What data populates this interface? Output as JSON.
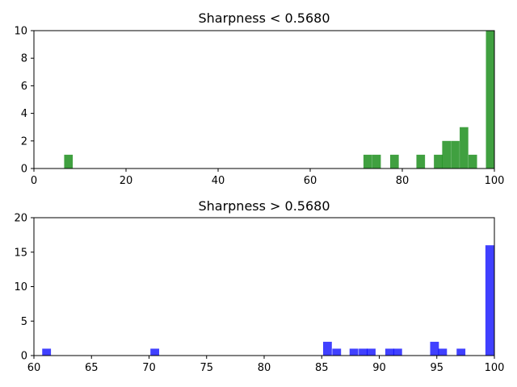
{
  "chart_data": [
    {
      "type": "bar",
      "title": "Sharpness < 0.5680",
      "color": "#008000",
      "xlim": [
        0,
        100
      ],
      "ylim": [
        0,
        10
      ],
      "xticks": [
        0,
        20,
        40,
        60,
        80,
        100
      ],
      "yticks": [
        0,
        2,
        4,
        6,
        8,
        10
      ],
      "bin_width": 1.87,
      "bins": [
        {
          "x": 7.5,
          "value": 1
        },
        {
          "x": 72.5,
          "value": 1
        },
        {
          "x": 74.4,
          "value": 1
        },
        {
          "x": 78.3,
          "value": 1
        },
        {
          "x": 84.0,
          "value": 1
        },
        {
          "x": 87.8,
          "value": 1
        },
        {
          "x": 89.6,
          "value": 2
        },
        {
          "x": 91.5,
          "value": 2
        },
        {
          "x": 93.4,
          "value": 3
        },
        {
          "x": 95.3,
          "value": 1
        },
        {
          "x": 99.1,
          "value": 10
        }
      ]
    },
    {
      "type": "bar",
      "title": "Sharpness > 0.5680",
      "color": "#0000ff",
      "xlim": [
        60,
        100
      ],
      "ylim": [
        0,
        20
      ],
      "xticks": [
        60,
        65,
        70,
        75,
        80,
        85,
        90,
        95,
        100
      ],
      "yticks": [
        0,
        5,
        10,
        15,
        20
      ],
      "bin_width": 0.76,
      "bins": [
        {
          "x": 61.1,
          "value": 1
        },
        {
          "x": 70.5,
          "value": 1
        },
        {
          "x": 85.5,
          "value": 2
        },
        {
          "x": 86.3,
          "value": 1
        },
        {
          "x": 87.8,
          "value": 1
        },
        {
          "x": 88.6,
          "value": 1
        },
        {
          "x": 89.3,
          "value": 1
        },
        {
          "x": 90.9,
          "value": 1
        },
        {
          "x": 91.6,
          "value": 1
        },
        {
          "x": 94.8,
          "value": 2
        },
        {
          "x": 95.5,
          "value": 1
        },
        {
          "x": 97.1,
          "value": 1
        },
        {
          "x": 99.6,
          "value": 16
        }
      ]
    }
  ]
}
